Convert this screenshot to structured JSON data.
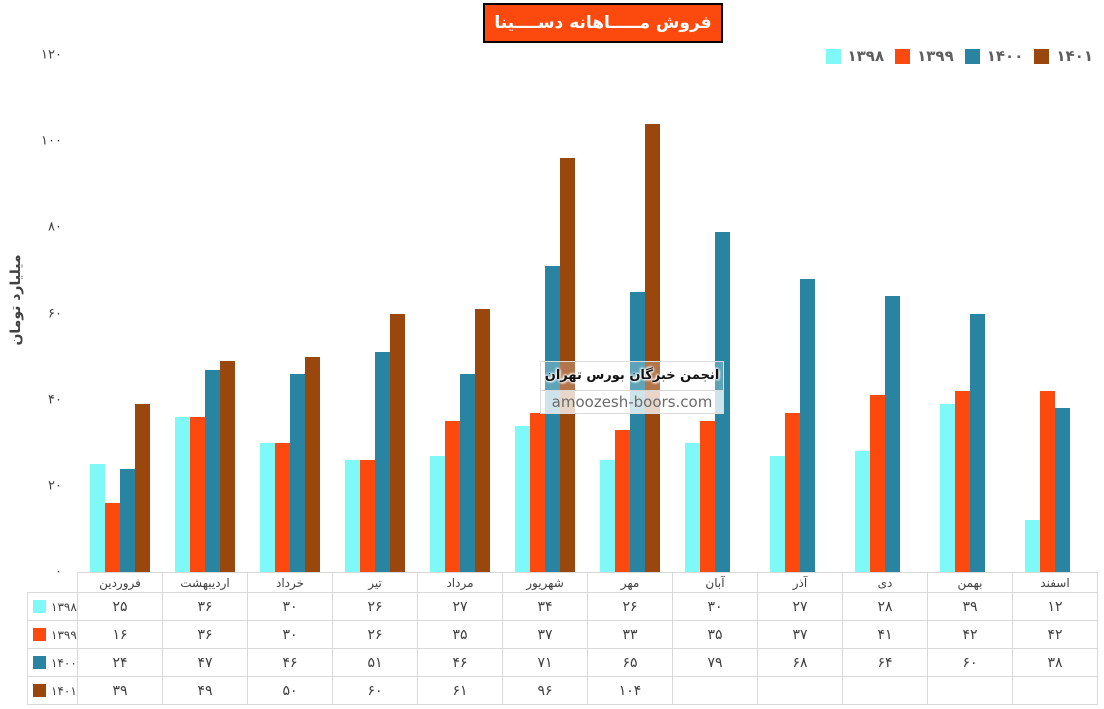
{
  "title": "فروش مـــــاهانه دســــینا",
  "title_bg_color": "#FC4A0E",
  "y_axis": {
    "title": "میلیارد تومان",
    "tick_values": [
      0,
      20,
      40,
      60,
      80,
      100,
      120
    ],
    "tick_labels": [
      "۰",
      "۲۰",
      "۴۰",
      "۶۰",
      "۸۰",
      "۱۰۰",
      "۱۲۰"
    ]
  },
  "watermark": {
    "line1": "انجمن خبرگان بورس تهران",
    "line2": "amoozesh-boors.com"
  },
  "chart_data": {
    "type": "bar",
    "title": "فروش مـــــاهانه دســــینا",
    "xlabel": "",
    "ylabel": "میلیارد تومان",
    "ylim": [
      0,
      120
    ],
    "grid": false,
    "legend_position": "top-right",
    "categories": [
      "فروردین",
      "اردیبهشت",
      "خرداد",
      "تیر",
      "مرداد",
      "شهریور",
      "مهر",
      "آبان",
      "آذر",
      "دی",
      "بهمن",
      "اسفند"
    ],
    "series": [
      {
        "name": "۱۳۹۸",
        "year": 1398,
        "color": "#7FF8F8",
        "values": [
          25,
          36,
          30,
          26,
          27,
          34,
          26,
          30,
          27,
          28,
          39,
          12
        ],
        "display": [
          "۲۵",
          "۳۶",
          "۳۰",
          "۲۶",
          "۲۷",
          "۳۴",
          "۲۶",
          "۳۰",
          "۲۷",
          "۲۸",
          "۳۹",
          "۱۲"
        ]
      },
      {
        "name": "۱۳۹۹",
        "year": 1399,
        "color": "#FC4A0E",
        "values": [
          16,
          36,
          30,
          26,
          35,
          37,
          33,
          35,
          37,
          41,
          42,
          42
        ],
        "display": [
          "۱۶",
          "۳۶",
          "۳۰",
          "۲۶",
          "۳۵",
          "۳۷",
          "۳۳",
          "۳۵",
          "۳۷",
          "۴۱",
          "۴۲",
          "۴۲"
        ]
      },
      {
        "name": "۱۴۰۰",
        "year": 1400,
        "color": "#2884A1",
        "values": [
          24,
          47,
          46,
          51,
          46,
          71,
          65,
          79,
          68,
          64,
          60,
          38
        ],
        "display": [
          "۲۴",
          "۴۷",
          "۴۶",
          "۵۱",
          "۴۶",
          "۷۱",
          "۶۵",
          "۷۹",
          "۶۸",
          "۶۴",
          "۶۰",
          "۳۸"
        ]
      },
      {
        "name": "۱۴۰۱",
        "year": 1401,
        "color": "#9A470E",
        "values": [
          39,
          49,
          50,
          60,
          61,
          96,
          104,
          null,
          null,
          null,
          null,
          null
        ],
        "display": [
          "۳۹",
          "۴۹",
          "۵۰",
          "۶۰",
          "۶۱",
          "۹۶",
          "۱۰۴",
          "",
          "",
          "",
          "",
          ""
        ]
      }
    ]
  }
}
